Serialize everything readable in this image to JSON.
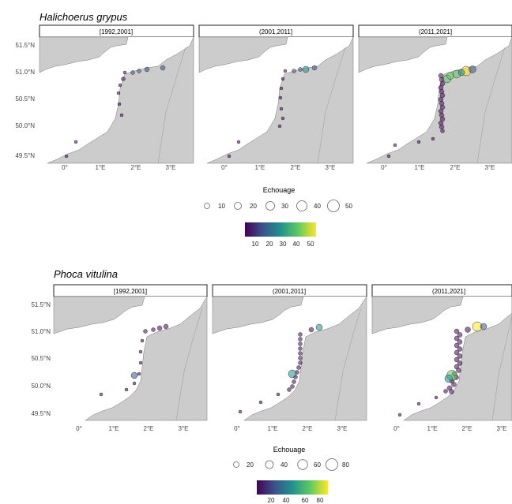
{
  "figures": [
    {
      "species": "Halichoerus grypus",
      "panels": [
        {
          "label": "[1992,2001]"
        },
        {
          "label": "(2001,2011]"
        },
        {
          "label": "(2011,2021]"
        }
      ],
      "y_ticks": [
        "51.5°N",
        "51.0°N",
        "50.5°N",
        "50.0°N",
        "49.5°N"
      ],
      "x_ticks": [
        "0°",
        "1°E",
        "2°E",
        "3°E"
      ],
      "legend_title": "Echouage",
      "size_legend": [
        10,
        20,
        30,
        40,
        50
      ],
      "color_legend": [
        10,
        20,
        30,
        40,
        50
      ]
    },
    {
      "species": "Phoca vitulina",
      "panels": [
        {
          "label": "[1992,2001]"
        },
        {
          "label": "(2001,2011]"
        },
        {
          "label": "(2011,2021]"
        }
      ],
      "y_ticks": [
        "51.5°N",
        "51.0°N",
        "50.5°N",
        "50.0°N",
        "49.5°N"
      ],
      "x_ticks": [
        "0°",
        "1°E",
        "2°E",
        "3°E"
      ],
      "legend_title": "Echouage",
      "size_legend": [
        20,
        40,
        60,
        80
      ],
      "color_legend": [
        20,
        40,
        60,
        80
      ]
    }
  ],
  "colors": {
    "land": "#cccccc",
    "viridis": [
      "#440154",
      "#3b528b",
      "#21918c",
      "#5ec962",
      "#fde725"
    ]
  }
}
